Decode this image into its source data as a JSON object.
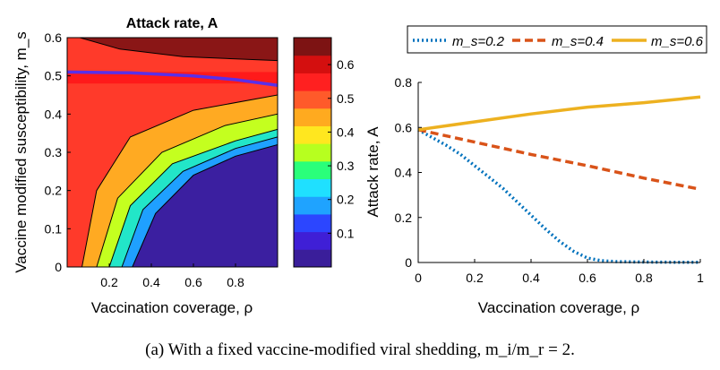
{
  "caption": "(a) With a fixed vaccine-modified viral shedding, m_i/m_r = 2.",
  "chart_data": [
    {
      "type": "heatmap",
      "title": "Attack rate, A",
      "xlabel": "Vaccination coverage, ρ",
      "ylabel": "Vaccine modified susceptibility, m_s",
      "xlim": [
        0,
        1
      ],
      "ylim": [
        0,
        0.6
      ],
      "xticks": [
        "0.2",
        "0.4",
        "0.6",
        "0.8"
      ],
      "yticks": [
        "0",
        "0.1",
        "0.2",
        "0.3",
        "0.4",
        "0.5",
        "0.6"
      ],
      "colorbar": {
        "range": [
          0,
          0.68
        ],
        "ticks": [
          "0.1",
          "0.2",
          "0.3",
          "0.4",
          "0.5",
          "0.6"
        ],
        "colors": [
          "#3a1e9a",
          "#3f1fd6",
          "#2c46ff",
          "#1fa3ff",
          "#1fe0ff",
          "#2aff7a",
          "#b7ff1f",
          "#ffe71f",
          "#ffaa1f",
          "#ff5a2a",
          "#ff2020",
          "#d40f0f",
          "#7d1313"
        ]
      },
      "contours": [
        {
          "level": 0.1,
          "points": [
            [
              0.31,
              0
            ],
            [
              0.42,
              0.14
            ],
            [
              0.6,
              0.24
            ],
            [
              0.8,
              0.29
            ],
            [
              1.0,
              0.32
            ]
          ]
        },
        {
          "level": 0.2,
          "points": [
            [
              0.26,
              0
            ],
            [
              0.36,
              0.15
            ],
            [
              0.55,
              0.25
            ],
            [
              0.8,
              0.31
            ],
            [
              1.0,
              0.34
            ]
          ]
        },
        {
          "level": 0.3,
          "points": [
            [
              0.2,
              0
            ],
            [
              0.3,
              0.16
            ],
            [
              0.5,
              0.27
            ],
            [
              0.8,
              0.33
            ],
            [
              1.0,
              0.36
            ]
          ]
        },
        {
          "level": 0.4,
          "points": [
            [
              0.14,
              0
            ],
            [
              0.24,
              0.18
            ],
            [
              0.45,
              0.3
            ],
            [
              0.75,
              0.37
            ],
            [
              1.0,
              0.4
            ]
          ]
        },
        {
          "level": 0.5,
          "points": [
            [
              0.07,
              0
            ],
            [
              0.14,
              0.2
            ],
            [
              0.3,
              0.34
            ],
            [
              0.6,
              0.41
            ],
            [
              1.0,
              0.45
            ]
          ]
        },
        {
          "level": 0.6,
          "points": [
            [
              0.06,
              0.6
            ],
            [
              0.25,
              0.57
            ],
            [
              0.55,
              0.55
            ],
            [
              1.0,
              0.54
            ]
          ]
        }
      ],
      "threshold_line": {
        "color": "#5a2fe8",
        "points": [
          [
            0,
            0.51
          ],
          [
            0.3,
            0.508
          ],
          [
            0.6,
            0.5
          ],
          [
            0.8,
            0.49
          ],
          [
            1.0,
            0.475
          ]
        ]
      }
    },
    {
      "type": "line",
      "xlabel": "Vaccination coverage, ρ",
      "ylabel": "Attack rate, A",
      "xlim": [
        0,
        1
      ],
      "ylim": [
        0,
        0.8
      ],
      "xticks": [
        "0",
        "0.2",
        "0.4",
        "0.6",
        "0.8",
        "1"
      ],
      "yticks": [
        "0",
        "0.2",
        "0.4",
        "0.6",
        "0.8"
      ],
      "legend": "top",
      "series": [
        {
          "name": "m_s=0.2",
          "color": "#0072bd",
          "dash": "dotted",
          "x": [
            0,
            0.05,
            0.1,
            0.15,
            0.2,
            0.25,
            0.3,
            0.35,
            0.4,
            0.45,
            0.5,
            0.55,
            0.6,
            0.65,
            0.7,
            0.8,
            0.9,
            1.0
          ],
          "y": [
            0.59,
            0.555,
            0.52,
            0.48,
            0.43,
            0.38,
            0.33,
            0.27,
            0.21,
            0.15,
            0.095,
            0.05,
            0.02,
            0.008,
            0.004,
            0.002,
            0.001,
            0.001
          ]
        },
        {
          "name": "m_s=0.4",
          "color": "#d95319",
          "dash": "dashed",
          "x": [
            0,
            0.2,
            0.4,
            0.6,
            0.8,
            1.0
          ],
          "y": [
            0.59,
            0.535,
            0.48,
            0.43,
            0.375,
            0.325
          ]
        },
        {
          "name": "m_s=0.6",
          "color": "#edb120",
          "dash": "solid",
          "x": [
            0,
            0.2,
            0.4,
            0.6,
            0.8,
            1.0
          ],
          "y": [
            0.59,
            0.625,
            0.66,
            0.69,
            0.71,
            0.735
          ]
        }
      ]
    }
  ]
}
